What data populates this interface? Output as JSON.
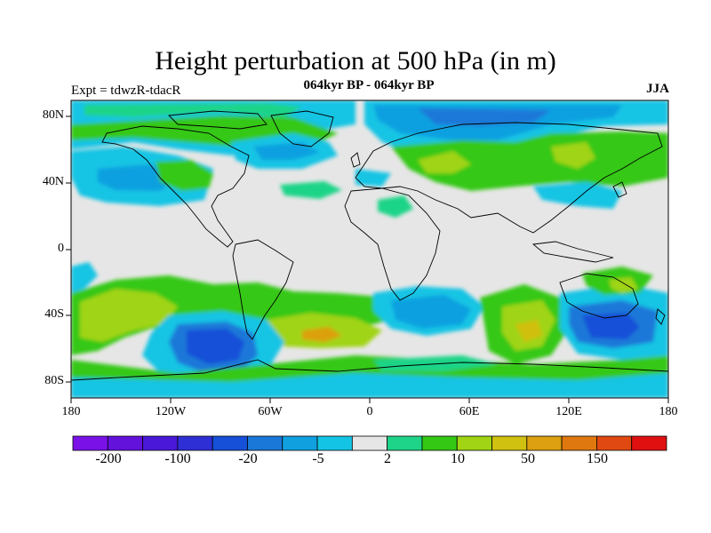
{
  "title": "Height perturbation at 500 hPa (in m)",
  "subtitle": "064kyr BP - 064kyr BP",
  "experiment": "Expt = tdwzR-tdacR",
  "season": "JJA",
  "lat_labels": [
    "80N",
    "40N",
    "0",
    "40S",
    "80S"
  ],
  "lon_labels": [
    "180",
    "120W",
    "60W",
    "0",
    "60E",
    "120E",
    "180"
  ],
  "colorbar": {
    "labels": [
      "-200",
      "-100",
      "-20",
      "-5",
      "2",
      "10",
      "50",
      "150"
    ],
    "colors": [
      "#7a12e8",
      "#6312dc",
      "#4a18d8",
      "#2f2fd6",
      "#1650d8",
      "#1a78d8",
      "#10a0e0",
      "#14c4e4",
      "#e6e6e6",
      "#1ed488",
      "#34c814",
      "#a0d414",
      "#d0c010",
      "#dca010",
      "#e07810",
      "#e04a12",
      "#e01010"
    ]
  },
  "map": {
    "background_color": "#e6e6e6",
    "fill_colors": {
      "light_blue": "#14c4e4",
      "mid_blue": "#10a0e0",
      "blue": "#1a78d8",
      "dark_blue": "#1650d8",
      "green": "#34c814",
      "teal_green": "#1ed488",
      "yellow_green": "#a0d414",
      "yellow": "#d0c010",
      "orange": "#dca010"
    }
  }
}
